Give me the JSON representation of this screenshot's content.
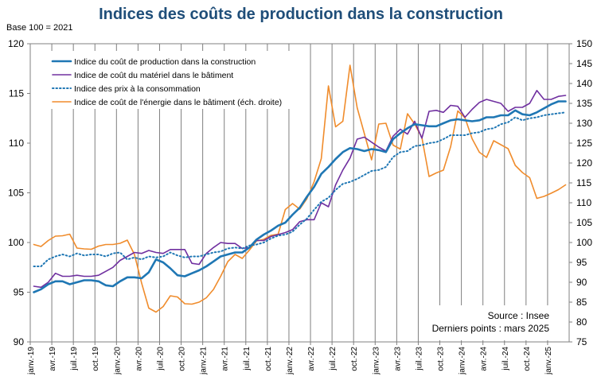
{
  "chart_data": {
    "type": "line",
    "title": "Indices des coûts de production dans la construction",
    "base_label": "Base 100 = 2021",
    "ylim": [
      90,
      120
    ],
    "ylim_right": [
      75,
      150
    ],
    "yticks": [
      90,
      95,
      100,
      105,
      110,
      115,
      120
    ],
    "yticks_right": [
      75,
      80,
      85,
      90,
      95,
      100,
      105,
      110,
      115,
      120,
      125,
      130,
      135,
      140,
      145,
      150
    ],
    "x_tick_labels": [
      "janv.-19",
      "avr.-19",
      "juil.-19",
      "oct.-19",
      "janv.-20",
      "avr.-20",
      "juil.-20",
      "oct.-20",
      "janv.-21",
      "avr.-21",
      "juil.-21",
      "oct.-21",
      "janv.-22",
      "avr.-22",
      "juil.-22",
      "oct.-22",
      "janv.-23",
      "avr.-23",
      "juil.-23",
      "oct.-23",
      "janv.-24",
      "avr.-24",
      "juil.-24",
      "oct.-24",
      "janv.-25"
    ],
    "n_months": 75,
    "series": [
      {
        "name": "Indice du coût de production dans la construction",
        "color": "#1F77B4",
        "style": "solid",
        "axis": "left",
        "values": [
          95.0,
          95.3,
          95.8,
          96.1,
          96.1,
          95.8,
          96.0,
          96.2,
          96.2,
          96.1,
          95.7,
          95.6,
          96.1,
          96.5,
          96.5,
          96.4,
          97.0,
          98.3,
          98.0,
          97.4,
          96.7,
          96.6,
          96.9,
          97.2,
          97.6,
          98.1,
          98.6,
          98.8,
          99.0,
          99.0,
          99.5,
          100.3,
          100.8,
          101.2,
          101.7,
          102.0,
          102.8,
          103.5,
          104.6,
          105.6,
          106.9,
          107.6,
          108.4,
          109.1,
          109.5,
          109.4,
          109.2,
          109.4,
          109.3,
          109.1,
          110.4,
          111.0,
          111.5,
          111.9,
          111.8,
          111.7,
          111.7,
          112.0,
          112.3,
          112.4,
          112.3,
          112.2,
          112.3,
          112.6,
          112.6,
          112.8,
          112.8,
          113.3,
          112.9,
          112.8,
          113.1,
          113.5,
          113.9,
          114.2,
          114.2
        ]
      },
      {
        "name": "Indice de coût du matériel dans le bâtiment",
        "color": "#7030A0",
        "style": "solid",
        "axis": "left",
        "values": [
          95.6,
          95.5,
          96.0,
          96.9,
          96.6,
          96.6,
          96.7,
          96.6,
          96.6,
          96.7,
          97.1,
          97.5,
          98.2,
          98.6,
          99.0,
          98.9,
          99.2,
          99.0,
          98.9,
          99.3,
          99.3,
          99.3,
          97.9,
          97.8,
          98.9,
          99.5,
          100.0,
          99.9,
          99.9,
          99.4,
          99.5,
          100.2,
          100.2,
          100.6,
          100.8,
          101.0,
          101.3,
          102.1,
          102.3,
          102.3,
          104.0,
          103.6,
          105.8,
          107.3,
          108.5,
          110.4,
          110.6,
          110.1,
          109.6,
          109.2,
          110.7,
          111.4,
          110.9,
          112.2,
          110.5,
          113.2,
          113.3,
          113.1,
          113.8,
          113.7,
          112.6,
          113.4,
          114.1,
          114.4,
          114.2,
          114.0,
          113.2,
          113.6,
          113.6,
          114.0,
          115.3,
          114.4,
          114.4,
          114.7,
          114.8
        ]
      },
      {
        "name": "Indice des prix à la consommation",
        "color": "#1F77B4",
        "style": "dotted",
        "axis": "left",
        "values": [
          97.6,
          97.6,
          98.3,
          98.6,
          98.8,
          98.6,
          98.9,
          98.7,
          98.8,
          98.8,
          98.6,
          98.9,
          99.0,
          98.3,
          98.5,
          98.3,
          98.6,
          98.5,
          98.6,
          99.0,
          98.7,
          98.5,
          98.6,
          98.6,
          98.8,
          99.0,
          99.1,
          99.4,
          99.5,
          99.4,
          99.7,
          99.8,
          100.0,
          100.4,
          100.7,
          100.8,
          101.1,
          101.8,
          102.4,
          103.3,
          104.1,
          104.5,
          105.3,
          105.9,
          106.1,
          106.4,
          106.8,
          107.2,
          107.3,
          107.6,
          108.6,
          109.1,
          109.2,
          109.7,
          109.8,
          110.0,
          110.1,
          110.4,
          110.8,
          110.8,
          110.8,
          111.0,
          111.1,
          111.4,
          111.5,
          111.9,
          112.1,
          112.6,
          112.3,
          112.5,
          112.6,
          112.8,
          112.9,
          113.0,
          113.1
        ]
      },
      {
        "name": "Indice de coût de l'énergie dans le bâtiment (éch. droite)",
        "color": "#F08C2C",
        "style": "solid",
        "axis": "right",
        "values": [
          99.5,
          99.0,
          100.5,
          101.6,
          101.7,
          102.1,
          98.6,
          98.4,
          98.3,
          99.1,
          99.5,
          99.5,
          99.8,
          100.6,
          97.0,
          89.8,
          83.5,
          82.5,
          83.9,
          86.6,
          86.3,
          84.6,
          84.5,
          85.0,
          86.1,
          88.2,
          91.5,
          95.2,
          97.0,
          96.0,
          98.1,
          100.4,
          100.8,
          101.8,
          102.1,
          108.3,
          109.8,
          108.4,
          111.0,
          115.3,
          121.1,
          139.4,
          129.1,
          130.5,
          144.6,
          133.9,
          127.4,
          120.8,
          129.8,
          130.0,
          124.5,
          123.5,
          132.4,
          129.8,
          126.4,
          116.6,
          117.5,
          118.2,
          124.1,
          133.1,
          131.4,
          126.1,
          122.7,
          121.4,
          125.6,
          124.6,
          123.6,
          119.4,
          117.6,
          116.3,
          111.1,
          111.6,
          112.4,
          113.3,
          114.5
        ]
      }
    ],
    "source_lines": [
      "Source : Insee",
      "Derniers points : mars 2025"
    ]
  }
}
